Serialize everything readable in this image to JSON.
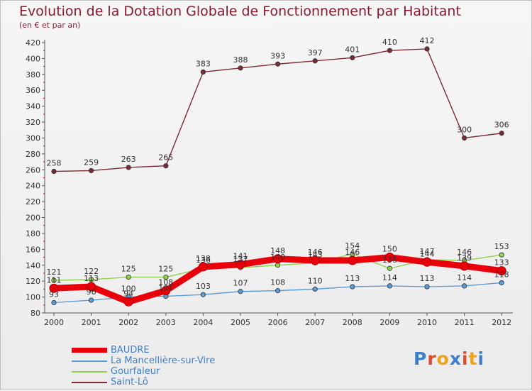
{
  "chart_data": {
    "type": "line",
    "title": "Evolution de la Dotation Globale de Fonctionnement par Habitant",
    "subtitle": "(en € et par an)",
    "categories": [
      "2000",
      "2001",
      "2002",
      "2003",
      "2004",
      "2005",
      "2006",
      "2007",
      "2008",
      "2009",
      "2010",
      "2011",
      "2012"
    ],
    "ylim": [
      80,
      420
    ],
    "yticks": [
      80,
      100,
      120,
      140,
      160,
      180,
      200,
      220,
      240,
      260,
      280,
      300,
      320,
      340,
      360,
      380,
      400,
      420
    ],
    "grid": false,
    "legend_position": "bottom-left",
    "series": [
      {
        "name": "BAUDRE",
        "color": "#e8000b",
        "values": [
          111,
          113,
          94,
          108,
          138,
          141,
          148,
          146,
          146,
          150,
          144,
          139,
          133
        ]
      },
      {
        "name": "La Mancellière-sur-Vire",
        "color": "#5b9bd5",
        "values": [
          93,
          96,
          100,
          101,
          103,
          107,
          108,
          110,
          113,
          114,
          113,
          114,
          118
        ]
      },
      {
        "name": "Gourfaleur",
        "color": "#8fd14f",
        "values": [
          121,
          122,
          125,
          125,
          136,
          137,
          140,
          143,
          154,
          136,
          147,
          146,
          153
        ]
      },
      {
        "name": "Saint-Lô",
        "color": "#7b2b36",
        "values": [
          258,
          259,
          263,
          265,
          383,
          388,
          393,
          397,
          401,
          410,
          412,
          300,
          306
        ]
      }
    ],
    "data_labels": [
      {
        "series": 0,
        "labels": [
          "111",
          "113",
          "94",
          "108",
          "138",
          "141",
          "148",
          "146",
          "146",
          "150",
          "144",
          "139",
          "133"
        ]
      },
      {
        "series": 1,
        "labels": [
          "93",
          "96",
          "100",
          "101",
          "103",
          "107",
          "108",
          "110",
          "113",
          "114",
          "113",
          "114",
          "118"
        ]
      },
      {
        "series": 2,
        "labels": [
          "121",
          "122",
          "125",
          "125",
          "136",
          "137",
          "140",
          "143",
          "154",
          "136",
          "147",
          "146",
          "153"
        ]
      },
      {
        "series": 3,
        "labels": [
          "258",
          "259",
          "263",
          "265",
          "383",
          "388",
          "393",
          "397",
          "401",
          "410",
          "412",
          "300",
          "306"
        ]
      }
    ]
  },
  "logo": {
    "text": "Proxiti",
    "colors": [
      "#3f7fc9",
      "#e04a2f",
      "#f0a21b",
      "#3f7fc9",
      "#e04a2f",
      "#f0a21b",
      "#3f7fc9"
    ]
  },
  "axis_color": "#555555",
  "tick_mark_color": "#e00000"
}
